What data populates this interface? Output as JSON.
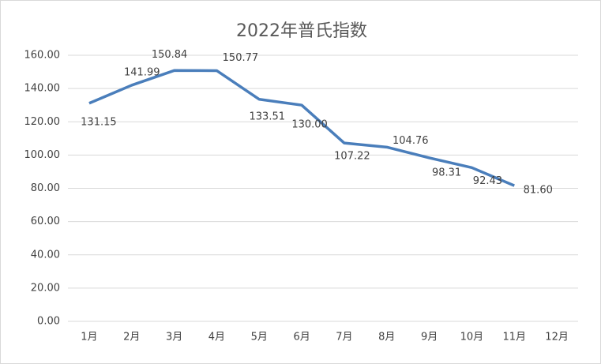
{
  "chart_data": {
    "type": "line",
    "title": "2022年普氏指数",
    "categories": [
      "1月",
      "2月",
      "3月",
      "4月",
      "5月",
      "6月",
      "7月",
      "8月",
      "9月",
      "10月",
      "11月",
      "12月"
    ],
    "series": [
      {
        "name": null,
        "color": "#4a7ebb",
        "values": [
          131.15,
          141.99,
          150.84,
          150.77,
          133.51,
          130.0,
          107.22,
          104.76,
          98.31,
          92.43,
          81.6,
          null
        ],
        "value_labels": [
          "131.15",
          "141.99",
          "150.84",
          "150.77",
          "133.51",
          "130.00",
          "107.22",
          "104.76",
          "98.31",
          "92.43",
          "81.60",
          null
        ]
      }
    ],
    "ylim": [
      0,
      160
    ],
    "yticks": [
      {
        "value": 0,
        "label": "0.00"
      },
      {
        "value": 20,
        "label": "20.00"
      },
      {
        "value": 40,
        "label": "40.00"
      },
      {
        "value": 60,
        "label": "60.00"
      },
      {
        "value": 80,
        "label": "80.00"
      },
      {
        "value": 100,
        "label": "100.00"
      },
      {
        "value": 120,
        "label": "120.00"
      },
      {
        "value": 140,
        "label": "140.00"
      },
      {
        "value": 160,
        "label": "160.00"
      }
    ],
    "grid": true
  }
}
